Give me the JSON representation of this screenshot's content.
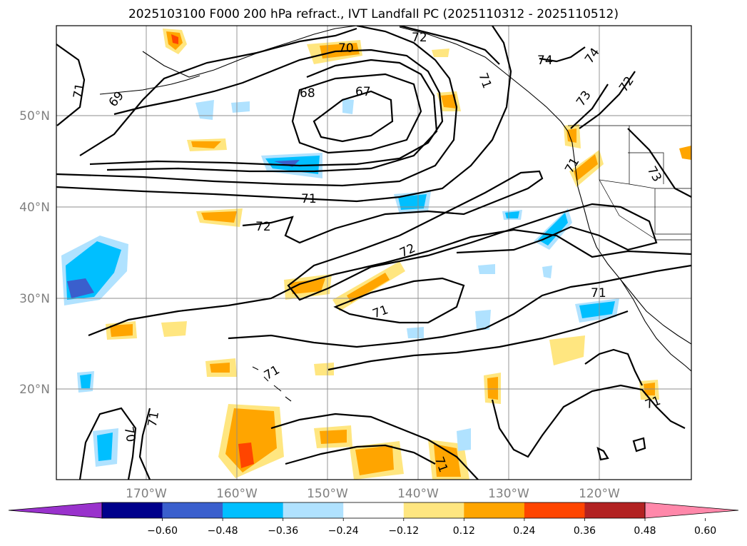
{
  "title": "2025103100 F000 200 hPa refract., IVT Landfall PC (2025110312 - 2025110512)",
  "map": {
    "lat_labels": [
      "50°N",
      "40°N",
      "30°N",
      "20°N"
    ],
    "lon_labels": [
      "170°W",
      "160°W",
      "150°W",
      "140°W",
      "130°W",
      "120°W"
    ],
    "contour_labels": [
      "70",
      "72",
      "74",
      "74",
      "69",
      "68",
      "67",
      "73",
      "72",
      "73",
      "71",
      "71",
      "72",
      "72",
      "71",
      "71",
      "71",
      "71",
      "70",
      "71",
      "71",
      "71",
      "71"
    ]
  },
  "colorbar": {
    "ticks": [
      "−0.60",
      "−0.48",
      "−0.36",
      "−0.24",
      "−0.12",
      "0.12",
      "0.24",
      "0.36",
      "0.48",
      "0.60"
    ],
    "colors": [
      "#9932cc",
      "#00008b",
      "#3a5fcd",
      "#00bfff",
      "#b0e2ff",
      "#ffffff",
      "#ffe680",
      "#ffa500",
      "#ff4500",
      "#b22222",
      "#ff88aa"
    ]
  }
}
